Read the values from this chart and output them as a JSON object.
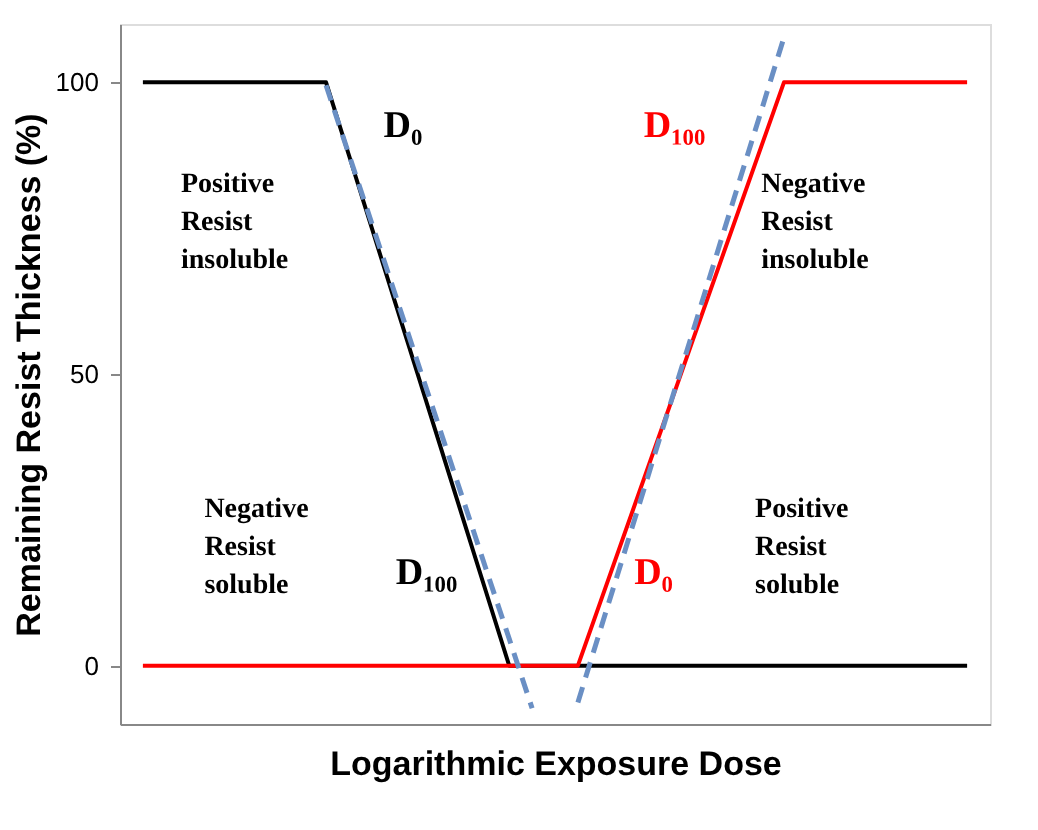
{
  "chart_data": {
    "type": "line",
    "xlabel": "Logarithmic Exposure Dose",
    "ylabel": "Remaining Resist Thickness (%)",
    "categories": [
      null,
      null,
      null,
      null,
      null,
      null,
      null,
      null,
      null,
      null,
      null,
      null,
      null,
      null,
      null,
      null,
      null,
      null,
      null,
      null,
      null,
      null,
      null,
      null,
      null,
      null,
      null,
      null,
      null,
      null,
      null,
      null,
      null,
      null,
      null,
      null,
      null
    ],
    "ylim": [
      -10,
      110
    ],
    "yticks": [
      0,
      50,
      100
    ],
    "tick_labels": "y",
    "grid": false,
    "marker": "none",
    "series": [
      {
        "color": "#000000",
        "values": [
          100,
          100,
          100,
          100,
          100,
          100,
          100,
          100,
          100,
          87.5,
          75,
          62.5,
          50,
          37.5,
          25,
          12.5,
          0,
          0,
          0,
          0,
          0,
          0,
          0,
          0,
          0,
          0,
          0,
          0,
          0,
          0,
          0,
          0,
          0,
          0,
          0,
          0,
          0
        ]
      },
      {
        "color": "#ff0000",
        "values": [
          0,
          0,
          0,
          0,
          0,
          0,
          0,
          0,
          0,
          0,
          0,
          0,
          0,
          0,
          0,
          0,
          0,
          0,
          0,
          0,
          11.1,
          22.2,
          33.3,
          44.4,
          55.6,
          66.7,
          77.8,
          88.9,
          100,
          100,
          100,
          100,
          100,
          100,
          100,
          100,
          100
        ]
      },
      {
        "color": "#6a8fc4",
        "line_style": "dashed",
        "values": [
          null,
          null,
          null,
          null,
          null,
          null,
          null,
          null,
          99.5,
          87.6,
          75.8,
          63.9,
          52.0,
          40.2,
          28.3,
          16.4,
          4.6,
          -7.3,
          null,
          null,
          null,
          null,
          null,
          null,
          null,
          null,
          null,
          null,
          null,
          null,
          null,
          null,
          null,
          null,
          null,
          null,
          null
        ]
      },
      {
        "color": "#6a8fc4",
        "line_style": "dashed",
        "values": [
          null,
          null,
          null,
          null,
          null,
          null,
          null,
          null,
          null,
          null,
          null,
          null,
          null,
          null,
          null,
          null,
          null,
          null,
          null,
          -6.3,
          6.4,
          19.0,
          31.7,
          44.4,
          57.0,
          69.7,
          82.4,
          95.0,
          107.7,
          null,
          null,
          null,
          null,
          null,
          null,
          null,
          null
        ]
      }
    ],
    "annotations": [
      "D₀",
      "D₁₀₀",
      "D₁₀₀",
      "D₀",
      "Positive\nResist\ninsoluble",
      "Negative\nResist\nsoluble",
      "Negative\nResist\ninsoluble",
      "Positive\nResist\nsoluble"
    ]
  }
}
